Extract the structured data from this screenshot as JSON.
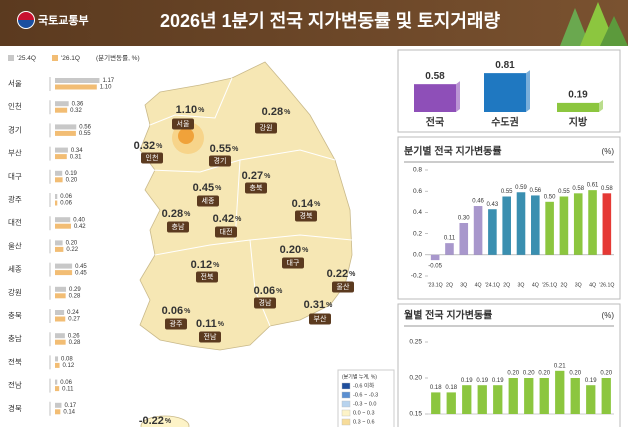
{
  "header": {
    "ministry": "국토교통부",
    "title": "2026년 1분기 전국 지가변동률 및 토지거래량"
  },
  "chart_data": [
    {
      "type": "bar",
      "orientation": "horizontal",
      "unit_note": "(분기변동률, %)",
      "categories": [
        "서울",
        "인천",
        "경기",
        "부산",
        "대구",
        "광주",
        "대전",
        "울산",
        "세종",
        "강원",
        "충북",
        "충남",
        "전북",
        "전남",
        "경북"
      ],
      "series": [
        {
          "name": "'25.4Q",
          "color": "#c8c8c8",
          "values": [
            1.17,
            0.36,
            0.56,
            0.34,
            0.19,
            0.06,
            0.4,
            0.2,
            0.45,
            0.29,
            0.24,
            0.26,
            0.08,
            0.06,
            0.17
          ],
          "value_labels": [
            "1.17",
            "0.36",
            "0.56",
            "0.34",
            "0.19",
            "0.06",
            "0.40",
            "0.20",
            "0.45",
            "0.29",
            "0.24",
            "0.26",
            "0.08",
            "0.06",
            "0.17"
          ]
        },
        {
          "name": "'26.1Q",
          "color": "#f2bd74",
          "values": [
            1.1,
            0.32,
            0.55,
            0.31,
            0.2,
            0.06,
            0.42,
            0.22,
            0.45,
            0.28,
            0.27,
            0.28,
            0.12,
            0.11,
            0.14
          ],
          "value_labels": [
            "1.10",
            "0.32",
            "0.55",
            "0.31",
            "0.20",
            "0.06",
            "0.42",
            "0.22",
            "0.45",
            "0.28",
            "0.27",
            "0.28",
            "0.12",
            "0.11",
            "0.14"
          ]
        }
      ]
    },
    {
      "type": "bar",
      "orientation": "vertical",
      "categories": [
        "전국",
        "수도권",
        "지방"
      ],
      "values": [
        0.58,
        0.81,
        0.19
      ],
      "colors": [
        "#8e4fb8",
        "#1f78c1",
        "#8cc63f"
      ]
    },
    {
      "type": "bar",
      "orientation": "vertical",
      "title": "분기별 전국 지가변동률",
      "unit": "(%)",
      "categories": [
        "'23.1Q",
        "2Q",
        "3Q",
        "4Q",
        "'24.1Q",
        "2Q",
        "3Q",
        "4Q",
        "'25.1Q",
        "2Q",
        "3Q",
        "4Q",
        "'26.1Q"
      ],
      "values": [
        -0.05,
        0.11,
        0.3,
        0.46,
        0.43,
        0.55,
        0.59,
        0.56,
        0.5,
        0.55,
        0.58,
        0.61,
        0.58
      ],
      "value_labels": [
        "-0.05",
        "0.11",
        "0.30",
        "0.46",
        "0.43",
        "0.55",
        "0.59",
        "0.56",
        "0.50",
        "0.55",
        "0.58",
        "0.61",
        "0.58"
      ],
      "colors": [
        "#a897cc",
        "#a897cc",
        "#a897cc",
        "#a897cc",
        "#3a8fb0",
        "#3a8fb0",
        "#3a8fb0",
        "#3a8fb0",
        "#8cc63f",
        "#8cc63f",
        "#8cc63f",
        "#8cc63f",
        "#e53935"
      ],
      "ylim": [
        -0.2,
        0.8
      ],
      "yticks": [
        -0.2,
        {
          "value": 0,
          "label": "0.0"
        },
        0.2,
        0.4,
        0.6,
        0.8
      ]
    },
    {
      "type": "bar",
      "orientation": "vertical",
      "title": "월별 전국 지가변동률",
      "unit": "(%)",
      "values": [
        0.18,
        0.18,
        0.19,
        0.19,
        0.19,
        0.2,
        0.2,
        0.2,
        0.21,
        0.2,
        0.19,
        0.2
      ],
      "value_labels": [
        "0.18",
        "0.18",
        "0.19",
        "0.19",
        "0.19",
        "0.20",
        "0.20",
        "0.20",
        "0.21",
        "0.20",
        "0.19",
        "0.20"
      ],
      "color": "#8cc63f",
      "ylim": [
        0.15,
        0.25
      ],
      "yticks": [
        0.15,
        {
          "value": 0.2,
          "label": "0.20"
        },
        0.25
      ]
    }
  ],
  "map": {
    "unit": "%",
    "regions": [
      {
        "name": "서울",
        "value": "1.10"
      },
      {
        "name": "인천",
        "value": "0.32"
      },
      {
        "name": "경기",
        "value": "0.55"
      },
      {
        "name": "강원",
        "value": "0.28"
      },
      {
        "name": "세종",
        "value": "0.45"
      },
      {
        "name": "충북",
        "value": "0.27"
      },
      {
        "name": "충남",
        "value": "0.28"
      },
      {
        "name": "대전",
        "value": "0.42"
      },
      {
        "name": "경북",
        "value": "0.14"
      },
      {
        "name": "대구",
        "value": "0.20"
      },
      {
        "name": "전북",
        "value": "0.12"
      },
      {
        "name": "경남",
        "value": "0.06"
      },
      {
        "name": "울산",
        "value": "0.22"
      },
      {
        "name": "부산",
        "value": "0.31"
      },
      {
        "name": "광주",
        "value": "0.06"
      },
      {
        "name": "전남",
        "value": "0.11"
      },
      {
        "value": "-0.22"
      }
    ],
    "legend": {
      "title": "(분기별 누계, %)",
      "items": [
        {
          "label": "-0.6 이하",
          "color": "#1f4e9c"
        },
        {
          "label": "-0.6 ~ -0.3",
          "color": "#5b8fd1"
        },
        {
          "label": "-0.3 ~ 0.0",
          "color": "#b8d3ee"
        },
        {
          "label": "0.0 ~ 0.3",
          "color": "#fdf3c7"
        },
        {
          "label": "0.3 ~ 0.6",
          "color": "#f7dc9a"
        }
      ]
    }
  }
}
